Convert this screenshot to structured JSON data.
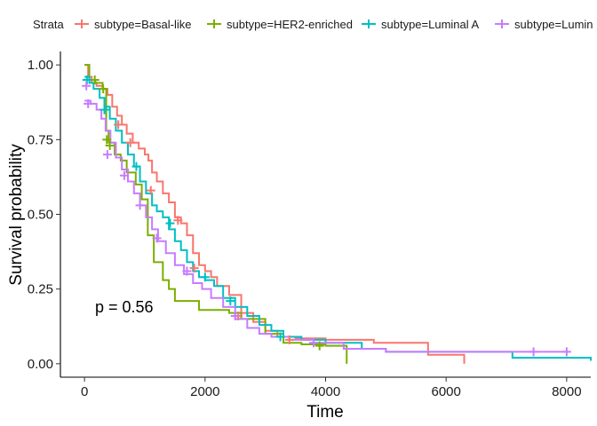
{
  "chart_data": {
    "type": "line",
    "title": "",
    "xlabel": "Time",
    "ylabel": "Survival probability",
    "xlim": [
      -400,
      8400
    ],
    "ylim": [
      -0.045,
      1.045
    ],
    "x_ticks": [
      0,
      2000,
      4000,
      6000,
      8000
    ],
    "x_tick_labels": [
      "0",
      "2000",
      "4000",
      "6000",
      "8000"
    ],
    "y_ticks": [
      0,
      0.25,
      0.5,
      0.75,
      1.0
    ],
    "y_tick_labels": [
      "0.00",
      "0.25",
      "0.50",
      "0.75",
      "1.00"
    ],
    "grid": false,
    "legend": {
      "position": "top",
      "title": "Strata",
      "entries": [
        "subtype=Basal-like",
        "subtype=HER2-enriched",
        "subtype=Luminal A",
        "subtype=Lumin"
      ]
    },
    "annotation": "p = 0.56",
    "series": [
      {
        "name": "subtype=Basal-like",
        "color": "#F8766D",
        "steps": [
          [
            0,
            1.0
          ],
          [
            60,
            0.96
          ],
          [
            120,
            0.94
          ],
          [
            200,
            0.93
          ],
          [
            300,
            0.92
          ],
          [
            380,
            0.9
          ],
          [
            460,
            0.86
          ],
          [
            540,
            0.83
          ],
          [
            620,
            0.8
          ],
          [
            700,
            0.77
          ],
          [
            800,
            0.74
          ],
          [
            900,
            0.72
          ],
          [
            1000,
            0.7
          ],
          [
            1060,
            0.68
          ],
          [
            1120,
            0.64
          ],
          [
            1200,
            0.61
          ],
          [
            1300,
            0.57
          ],
          [
            1400,
            0.54
          ],
          [
            1500,
            0.49
          ],
          [
            1600,
            0.47
          ],
          [
            1700,
            0.43
          ],
          [
            1800,
            0.37
          ],
          [
            1900,
            0.33
          ],
          [
            2000,
            0.31
          ],
          [
            2100,
            0.29
          ],
          [
            2200,
            0.26
          ],
          [
            2400,
            0.23
          ],
          [
            2600,
            0.17
          ],
          [
            2800,
            0.14
          ],
          [
            3000,
            0.11
          ],
          [
            3200,
            0.09
          ],
          [
            3500,
            0.085
          ],
          [
            4000,
            0.08
          ],
          [
            4800,
            0.07
          ],
          [
            5700,
            0.03
          ],
          [
            6300,
            0.0
          ]
        ],
        "censored": [
          [
            560,
            0.8
          ],
          [
            760,
            0.74
          ],
          [
            1100,
            0.58
          ],
          [
            1550,
            0.48
          ],
          [
            1820,
            0.32
          ],
          [
            2550,
            0.16
          ],
          [
            3400,
            0.08
          ]
        ]
      },
      {
        "name": "subtype=HER2-enriched",
        "color": "#7CAE00",
        "steps": [
          [
            0,
            1.0
          ],
          [
            80,
            0.95
          ],
          [
            180,
            0.94
          ],
          [
            300,
            0.92
          ],
          [
            360,
            0.78
          ],
          [
            400,
            0.74
          ],
          [
            500,
            0.7
          ],
          [
            600,
            0.68
          ],
          [
            700,
            0.64
          ],
          [
            850,
            0.6
          ],
          [
            950,
            0.55
          ],
          [
            1050,
            0.43
          ],
          [
            1150,
            0.34
          ],
          [
            1300,
            0.28
          ],
          [
            1400,
            0.25
          ],
          [
            1500,
            0.21
          ],
          [
            1900,
            0.18
          ],
          [
            2200,
            0.18
          ],
          [
            2400,
            0.17
          ],
          [
            2600,
            0.15
          ],
          [
            3000,
            0.1
          ],
          [
            3300,
            0.07
          ],
          [
            3600,
            0.065
          ],
          [
            4000,
            0.06
          ],
          [
            4350,
            0.0
          ]
        ],
        "censored": [
          [
            170,
            0.95
          ],
          [
            310,
            0.92
          ],
          [
            370,
            0.75
          ],
          [
            420,
            0.73
          ],
          [
            3900,
            0.06
          ]
        ]
      },
      {
        "name": "subtype=Luminal A",
        "color": "#00BFC4",
        "steps": [
          [
            0,
            0.96
          ],
          [
            80,
            0.94
          ],
          [
            150,
            0.92
          ],
          [
            250,
            0.89
          ],
          [
            330,
            0.86
          ],
          [
            420,
            0.82
          ],
          [
            520,
            0.78
          ],
          [
            620,
            0.74
          ],
          [
            720,
            0.7
          ],
          [
            820,
            0.66
          ],
          [
            920,
            0.61
          ],
          [
            1020,
            0.57
          ],
          [
            1120,
            0.53
          ],
          [
            1200,
            0.51
          ],
          [
            1300,
            0.49
          ],
          [
            1400,
            0.45
          ],
          [
            1500,
            0.41
          ],
          [
            1600,
            0.38
          ],
          [
            1700,
            0.34
          ],
          [
            1800,
            0.31
          ],
          [
            1900,
            0.29
          ],
          [
            2000,
            0.28
          ],
          [
            2150,
            0.26
          ],
          [
            2300,
            0.22
          ],
          [
            2500,
            0.19
          ],
          [
            2700,
            0.16
          ],
          [
            2900,
            0.13
          ],
          [
            3100,
            0.11
          ],
          [
            3300,
            0.09
          ],
          [
            3600,
            0.08
          ],
          [
            4000,
            0.07
          ],
          [
            4600,
            0.05
          ],
          [
            5000,
            0.04
          ],
          [
            7100,
            0.02
          ],
          [
            8400,
            0.01
          ]
        ],
        "censored": [
          [
            40,
            0.95
          ],
          [
            330,
            0.85
          ],
          [
            860,
            0.66
          ],
          [
            1420,
            0.47
          ],
          [
            2000,
            0.29
          ],
          [
            2420,
            0.21
          ],
          [
            3250,
            0.09
          ]
        ]
      },
      {
        "name": "subtype=Lumin",
        "color": "#C77CFF",
        "steps": [
          [
            0,
            0.88
          ],
          [
            100,
            0.87
          ],
          [
            200,
            0.85
          ],
          [
            280,
            0.82
          ],
          [
            350,
            0.78
          ],
          [
            430,
            0.74
          ],
          [
            520,
            0.69
          ],
          [
            620,
            0.65
          ],
          [
            720,
            0.61
          ],
          [
            820,
            0.57
          ],
          [
            920,
            0.53
          ],
          [
            1020,
            0.49
          ],
          [
            1120,
            0.45
          ],
          [
            1220,
            0.41
          ],
          [
            1350,
            0.37
          ],
          [
            1500,
            0.33
          ],
          [
            1650,
            0.3
          ],
          [
            1800,
            0.27
          ],
          [
            1950,
            0.25
          ],
          [
            2100,
            0.22
          ],
          [
            2300,
            0.19
          ],
          [
            2500,
            0.15
          ],
          [
            2700,
            0.12
          ],
          [
            2900,
            0.1
          ],
          [
            3100,
            0.09
          ],
          [
            3400,
            0.08
          ],
          [
            3800,
            0.07
          ],
          [
            4300,
            0.05
          ],
          [
            5000,
            0.04
          ],
          [
            8000,
            0.04
          ]
        ],
        "censored": [
          [
            30,
            0.93
          ],
          [
            60,
            0.87
          ],
          [
            380,
            0.7
          ],
          [
            660,
            0.63
          ],
          [
            920,
            0.53
          ],
          [
            1200,
            0.42
          ],
          [
            1700,
            0.31
          ],
          [
            2500,
            0.16
          ],
          [
            3800,
            0.07
          ],
          [
            7450,
            0.04
          ],
          [
            8000,
            0.04
          ]
        ]
      }
    ]
  }
}
